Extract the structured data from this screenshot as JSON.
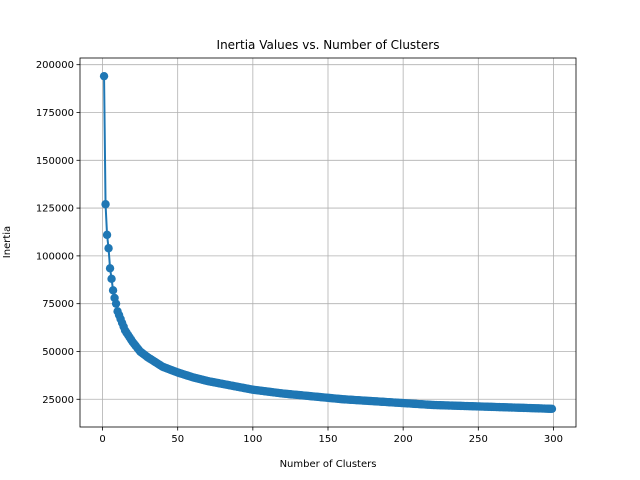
{
  "chart_data": {
    "type": "line",
    "title": "Inertia Values vs. Number of Clusters",
    "xlabel": "Number of Clusters",
    "ylabel": "Inertia",
    "xlim": [
      -15,
      315
    ],
    "ylim": [
      10500,
      203500
    ],
    "xticks": [
      0,
      50,
      100,
      150,
      200,
      250,
      300
    ],
    "yticks": [
      25000,
      50000,
      75000,
      100000,
      125000,
      150000,
      175000,
      200000
    ],
    "grid": true,
    "marker": "circle",
    "series_color": "#1f77b4",
    "x_start": 1,
    "x_end": 299,
    "series": [
      {
        "x": [
          1,
          2,
          3,
          4,
          5,
          6,
          7,
          8,
          9,
          10,
          12,
          15,
          20,
          25,
          30,
          40,
          50,
          60,
          70,
          80,
          90,
          100,
          120,
          140,
          160,
          180,
          200,
          220,
          240,
          260,
          280,
          299
        ],
        "values": [
          194000,
          127000,
          111000,
          104000,
          93500,
          88000,
          82000,
          78000,
          75000,
          71000,
          67000,
          61000,
          55000,
          50000,
          47000,
          42000,
          39000,
          36500,
          34500,
          33000,
          31500,
          30000,
          28000,
          26500,
          25000,
          24000,
          23000,
          22000,
          21500,
          21000,
          20500,
          20000
        ]
      }
    ]
  }
}
